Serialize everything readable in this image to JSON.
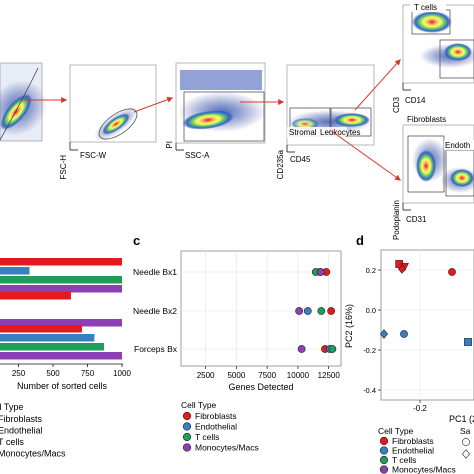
{
  "colors": {
    "red": "#e41a1c",
    "blue": "#3a7fc1",
    "green": "#1f9e5a",
    "purple": "#8d3fb5",
    "arrow": "#d83a2a",
    "gate": "#555555"
  },
  "flow": {
    "panels": [
      {
        "id": "p1",
        "xlabel": "",
        "ylabel": ""
      },
      {
        "id": "p2",
        "xlabel": "FSC-W",
        "ylabel": "FSC-H"
      },
      {
        "id": "p3",
        "xlabel": "SSC-A",
        "ylabel": "PI"
      },
      {
        "id": "p4",
        "xlabel": "CD45",
        "ylabel": "CD235a",
        "gate_left": "Stromal",
        "gate_right": "Leukocytes"
      },
      {
        "id": "p5",
        "xlabel": "CD14",
        "ylabel": "CD3",
        "gate": "T cells"
      },
      {
        "id": "p6",
        "xlabel": "CD31",
        "ylabel": "Podoplanin",
        "gate_left": "Fibroblasts",
        "gate_right": "Endoth"
      }
    ]
  },
  "panel_labels": {
    "c": "c",
    "d": "d"
  },
  "chart_data": [
    {
      "type": "bar",
      "orientation": "horizontal",
      "xlabel": "Number of sorted cells",
      "xlim": [
        0,
        1000
      ],
      "xticks": [
        250,
        500,
        750,
        1000
      ],
      "xtick_labels": [
        "250",
        "500",
        "750",
        "1000"
      ],
      "groups": [
        {
          "bars": [
            {
              "color": "red",
              "value": 1000
            },
            {
              "color": "blue",
              "value": 330
            },
            {
              "color": "green",
              "value": 1000
            },
            {
              "color": "purple",
              "value": 1000
            }
          ]
        },
        {
          "bars": [
            {
              "color": "red",
              "value": 630
            },
            {
              "color": "blue",
              "value": 0
            },
            {
              "color": "green",
              "value": 110
            },
            {
              "color": "purple",
              "value": 1000
            }
          ]
        },
        {
          "bars": [
            {
              "color": "red",
              "value": 710
            },
            {
              "color": "blue",
              "value": 800
            },
            {
              "color": "green",
              "value": 870
            },
            {
              "color": "purple",
              "value": 1000
            }
          ]
        }
      ],
      "legend": {
        "title": "Cell Type",
        "entries": [
          "Fibroblasts",
          "Endothelial",
          "T cells",
          "Monocytes/Macs"
        ]
      }
    },
    {
      "type": "scatter",
      "xlabel": "Genes Detected",
      "xlim": [
        500,
        13500
      ],
      "xticks": [
        2500,
        5000,
        7500,
        10000,
        12500
      ],
      "xtick_labels": [
        "2500",
        "5000",
        "7500",
        "10000",
        "12500"
      ],
      "categories": [
        "Needle Bx1",
        "Needle Bx2",
        "Forceps Bx"
      ],
      "series": [
        {
          "name": "Fibroblasts",
          "color": "red",
          "values": [
            12300,
            12700,
            12200
          ]
        },
        {
          "name": "Endothelial",
          "color": "blue",
          "values": [
            11800,
            10800,
            12600
          ]
        },
        {
          "name": "T cells",
          "color": "green",
          "values": [
            11450,
            11900,
            12800
          ]
        },
        {
          "name": "Monocytes/Macs",
          "color": "purple",
          "values": [
            11850,
            10100,
            10300
          ]
        }
      ],
      "legend": {
        "title": "Cell Type",
        "entries": [
          "Fibroblasts",
          "Endothelial",
          "T cells",
          "Monocytes/Macs"
        ]
      }
    },
    {
      "type": "scatter",
      "xlabel": "PC1 (2",
      "ylabel": "PC2 (16%)",
      "ylim": [
        -0.45,
        0.3
      ],
      "yticks": [
        0.2,
        0.0,
        -0.2,
        -0.4
      ],
      "ytick_labels": [
        "0.2",
        "0.0",
        "-0.2",
        "-0.4"
      ],
      "xticks": [
        -0.2
      ],
      "xtick_labels": [
        "-0.2"
      ],
      "points": [
        {
          "x": -0.252,
          "y": 0.23,
          "color": "red",
          "shape": "square"
        },
        {
          "x": -0.238,
          "y": 0.215,
          "color": "red",
          "shape": "triangle"
        },
        {
          "x": -0.245,
          "y": 0.205,
          "color": "red",
          "shape": "diamond"
        },
        {
          "x": -0.12,
          "y": 0.19,
          "color": "red",
          "shape": "circle"
        },
        {
          "x": -0.29,
          "y": -0.12,
          "color": "blue",
          "shape": "diamond"
        },
        {
          "x": -0.24,
          "y": -0.12,
          "color": "blue",
          "shape": "circle"
        },
        {
          "x": -0.08,
          "y": -0.16,
          "color": "blue",
          "shape": "square"
        }
      ],
      "legend": {
        "title": "Cell Type",
        "entries": [
          "Fibroblasts",
          "Endothelial",
          "T cells",
          "Monocytes/Macs"
        ]
      },
      "legend2": {
        "title": "Sa"
      }
    }
  ]
}
